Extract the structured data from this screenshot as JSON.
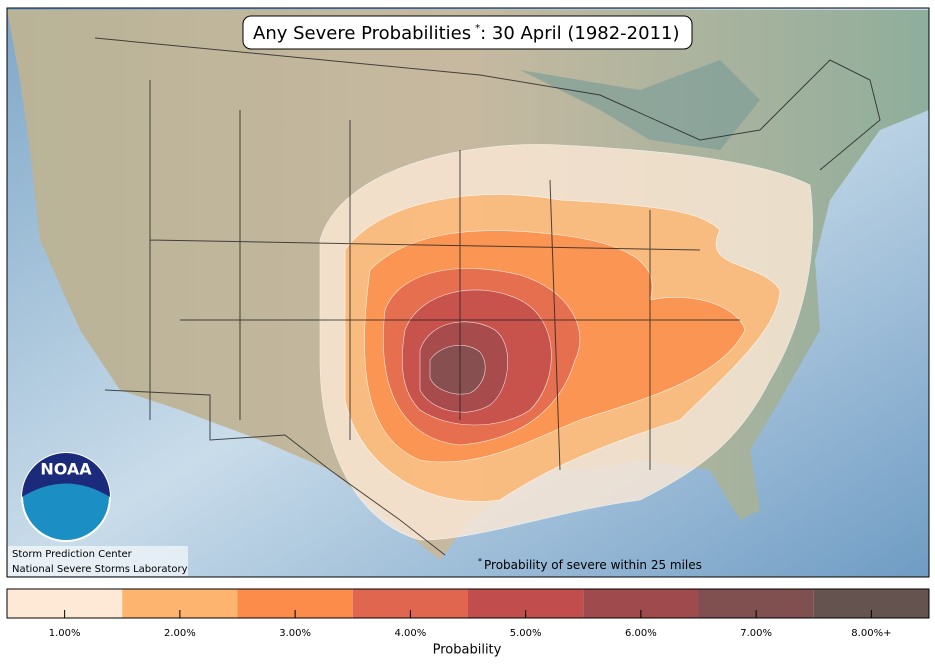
{
  "header": {
    "title": "Any Severe Probabilities",
    "title_mark": "*",
    "title_date": ": 30 April (1982-2011)"
  },
  "logo": "NOAA",
  "credits": [
    "Storm Prediction Center",
    "National Severe Storms Laboratory"
  ],
  "footnote": {
    "mark": "*",
    "text": "Probability of severe within 25 miles"
  },
  "colorbar": {
    "label": "Probability",
    "levels": [
      {
        "label": "1.00%",
        "color": "#fde9d6"
      },
      {
        "label": "2.00%",
        "color": "#fcb46e"
      },
      {
        "label": "3.00%",
        "color": "#fb8c4a"
      },
      {
        "label": "4.00%",
        "color": "#e0664f"
      },
      {
        "label": "5.00%",
        "color": "#c14d4d"
      },
      {
        "label": "6.00%",
        "color": "#9f4a4c"
      },
      {
        "label": "7.00%",
        "color": "#805050"
      },
      {
        "label": "8.00%+",
        "color": "#655350"
      }
    ]
  }
}
